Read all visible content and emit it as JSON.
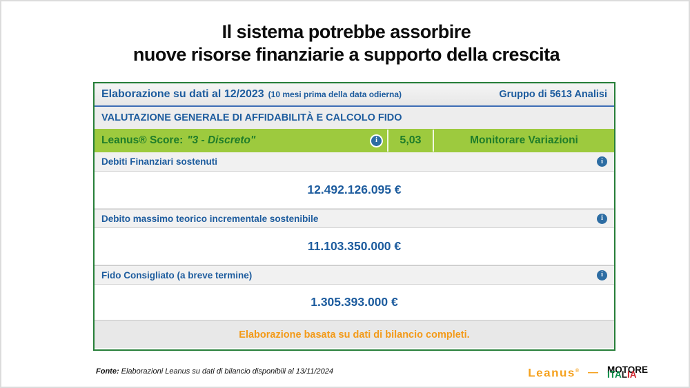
{
  "title": {
    "line1": "Il sistema potrebbe assorbire",
    "line2": "nuove risorse finanziarie a supporto della crescita"
  },
  "panel": {
    "header": {
      "left_main": "Elaborazione su dati al 12/2023",
      "left_note": "(10 mesi prima della data odierna)",
      "right": "Gruppo di 5613 Analisi"
    },
    "section_title": "VALUTAZIONE GENERALE DI AFFIDABILITÀ E CALCOLO FIDO",
    "score_row": {
      "label_prefix": "Leanus® Score:",
      "label_quote": "\"3 - Discreto\"",
      "score": "5,03",
      "action": "Monitorare Variazioni"
    },
    "metrics": [
      {
        "label": "Debiti Finanziari sostenuti",
        "value": "12.492.126.095 €"
      },
      {
        "label": "Debito massimo teorico incrementale sostenibile",
        "value": "11.103.350.000 €"
      },
      {
        "label": "Fido Consigliato (a breve termine)",
        "value": "1.305.393.000 €"
      }
    ],
    "footer_note": "Elaborazione basata su dati di bilancio completi."
  },
  "footer": {
    "fonte_label": "Fonte:",
    "fonte_text": "Elaborazioni Leanus su dati di bilancio disponibili al 13/11/2024",
    "leanus_logo": "Leanus",
    "leanus_mark": "®",
    "logo_separator": "—",
    "motore_line1": "MOTORE",
    "italia_part1": "ITA",
    "italia_part2": "L",
    "italia_part3": "IA"
  },
  "icons": {
    "info_glyph": "i"
  },
  "colors": {
    "panel_border_green": "#267e38",
    "score_row_green": "#9dca3e",
    "score_text_green": "#1f7d2a",
    "text_blue": "#1d5c9e",
    "note_orange": "#f39a18",
    "leanus_orange": "#f5a11d",
    "header_divider_blue": "#3d6db5",
    "italia_green": "#008C45",
    "italia_red": "#CD212A"
  }
}
